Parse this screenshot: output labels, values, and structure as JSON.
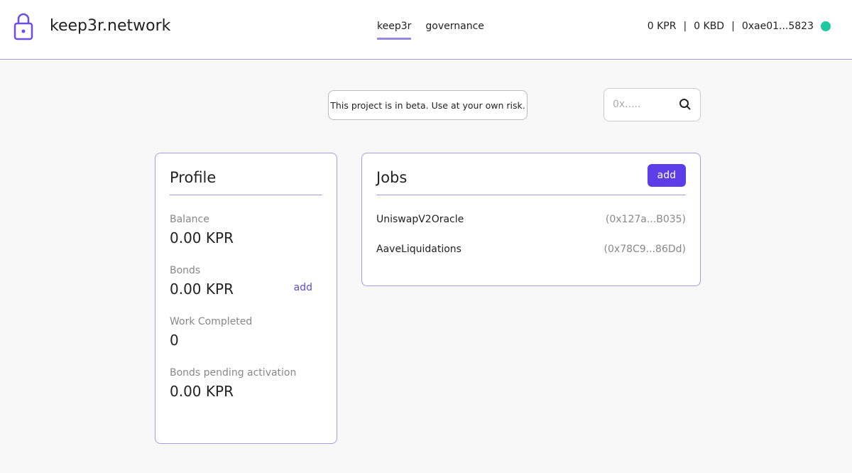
{
  "header": {
    "brand": "keep3r.network",
    "nav": [
      "keep3r",
      "governance"
    ],
    "kpr": "0 KPR",
    "kbd": "0 KBD",
    "address": "0xae01...5823"
  },
  "banner": "This project is in beta. Use at your own risk.",
  "search": {
    "placeholder": "0x....."
  },
  "profile": {
    "title": "Profile",
    "items": [
      {
        "label": "Balance",
        "value": "0.00 KPR"
      },
      {
        "label": "Bonds",
        "value": "0.00 KPR",
        "action": "add"
      },
      {
        "label": "Work Completed",
        "value": "0"
      },
      {
        "label": "Bonds pending activation",
        "value": "0.00 KPR"
      }
    ]
  },
  "jobs": {
    "title": "Jobs",
    "add": "add",
    "rows": [
      {
        "name": "UniswapV2Oracle",
        "address": "(0x127a...B035)"
      },
      {
        "name": "AaveLiquidations",
        "address": "(0x78C9...86Dd)"
      }
    ]
  }
}
